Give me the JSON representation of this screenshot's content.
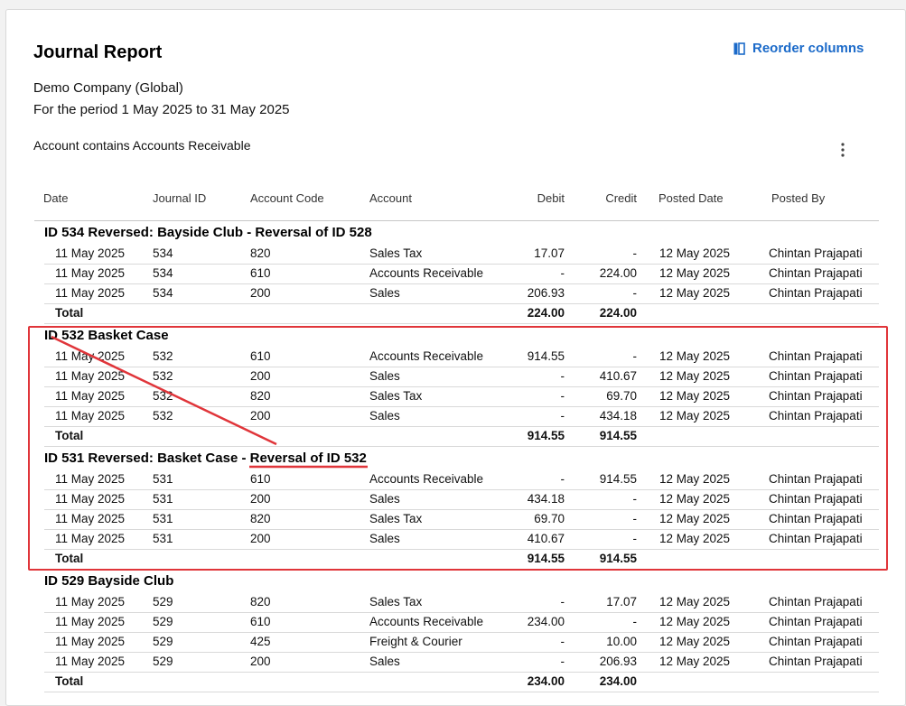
{
  "report": {
    "title": "Journal Report",
    "company": "Demo Company (Global)",
    "period": "For the period 1 May 2025 to 31 May 2025",
    "filter": "Account contains Accounts Receivable",
    "reorder_label": "Reorder columns"
  },
  "columns": [
    "Date",
    "Journal ID",
    "Account Code",
    "Account",
    "Debit",
    "Credit",
    "Posted Date",
    "Posted By"
  ],
  "groups": [
    {
      "title": "ID 534 Reversed: Bayside Club - Reversal of ID 528",
      "rows": [
        [
          "11 May 2025",
          "534",
          "820",
          "Sales Tax",
          "17.07",
          "-",
          "12 May 2025",
          "Chintan Prajapati"
        ],
        [
          "11 May 2025",
          "534",
          "610",
          "Accounts Receivable",
          "-",
          "224.00",
          "12 May 2025",
          "Chintan Prajapati"
        ],
        [
          "11 May 2025",
          "534",
          "200",
          "Sales",
          "206.93",
          "-",
          "12 May 2025",
          "Chintan Prajapati"
        ]
      ],
      "total": {
        "label": "Total",
        "debit": "224.00",
        "credit": "224.00"
      }
    },
    {
      "title": "ID 532 Basket Case",
      "rows": [
        [
          "11 May 2025",
          "532",
          "610",
          "Accounts Receivable",
          "914.55",
          "-",
          "12 May 2025",
          "Chintan Prajapati"
        ],
        [
          "11 May 2025",
          "532",
          "200",
          "Sales",
          "-",
          "410.67",
          "12 May 2025",
          "Chintan Prajapati"
        ],
        [
          "11 May 2025",
          "532",
          "820",
          "Sales Tax",
          "-",
          "69.70",
          "12 May 2025",
          "Chintan Prajapati"
        ],
        [
          "11 May 2025",
          "532",
          "200",
          "Sales",
          "-",
          "434.18",
          "12 May 2025",
          "Chintan Prajapati"
        ]
      ],
      "total": {
        "label": "Total",
        "debit": "914.55",
        "credit": "914.55"
      }
    },
    {
      "title": "ID 531 Reversed: Basket Case - Reversal of ID 532",
      "rows": [
        [
          "11 May 2025",
          "531",
          "610",
          "Accounts Receivable",
          "-",
          "914.55",
          "12 May 2025",
          "Chintan Prajapati"
        ],
        [
          "11 May 2025",
          "531",
          "200",
          "Sales",
          "434.18",
          "-",
          "12 May 2025",
          "Chintan Prajapati"
        ],
        [
          "11 May 2025",
          "531",
          "820",
          "Sales Tax",
          "69.70",
          "-",
          "12 May 2025",
          "Chintan Prajapati"
        ],
        [
          "11 May 2025",
          "531",
          "200",
          "Sales",
          "410.67",
          "-",
          "12 May 2025",
          "Chintan Prajapati"
        ]
      ],
      "total": {
        "label": "Total",
        "debit": "914.55",
        "credit": "914.55"
      }
    },
    {
      "title": "ID 529 Bayside Club",
      "rows": [
        [
          "11 May 2025",
          "529",
          "820",
          "Sales Tax",
          "-",
          "17.07",
          "12 May 2025",
          "Chintan Prajapati"
        ],
        [
          "11 May 2025",
          "529",
          "610",
          "Accounts Receivable",
          "234.00",
          "-",
          "12 May 2025",
          "Chintan Prajapati"
        ],
        [
          "11 May 2025",
          "529",
          "425",
          "Freight & Courier",
          "-",
          "10.00",
          "12 May 2025",
          "Chintan Prajapati"
        ],
        [
          "11 May 2025",
          "529",
          "200",
          "Sales",
          "-",
          "206.93",
          "12 May 2025",
          "Chintan Prajapati"
        ]
      ],
      "total": {
        "label": "Total",
        "debit": "234.00",
        "credit": "234.00"
      }
    }
  ],
  "annotation": {
    "color": "#e0353a"
  },
  "icons": {
    "reorder": "columns-icon",
    "menu": "kebab-menu-icon"
  },
  "accent_color": "#1b6ac9"
}
